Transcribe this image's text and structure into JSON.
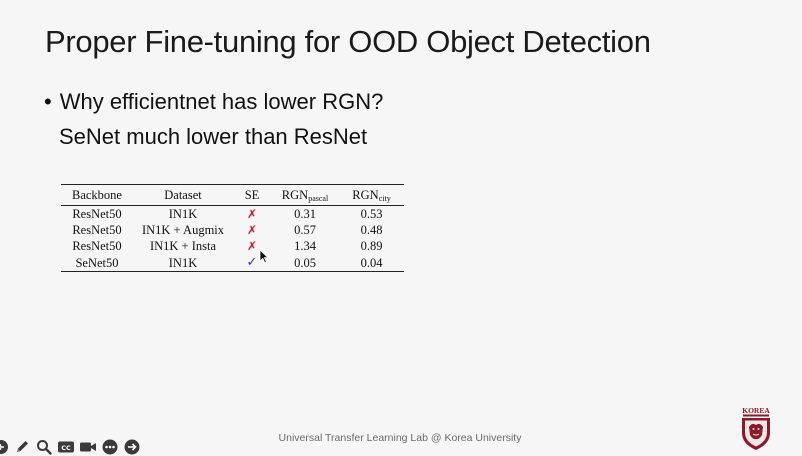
{
  "slide": {
    "title": "Proper Fine-tuning for OOD Object Detection",
    "bullet": "Why efficientnet has lower RGN?",
    "subtext": "SeNet much lower than ResNet"
  },
  "table": {
    "headers": {
      "backbone": "Backbone",
      "dataset": "Dataset",
      "se": "SE",
      "rgn_base_1": "RGN",
      "rgn_sub_1": "pascal",
      "rgn_base_2": "RGN",
      "rgn_sub_2": "city"
    },
    "rows": [
      {
        "backbone": "ResNet50",
        "dataset": "IN1K",
        "se": "✗",
        "rgn_pascal": "0.31",
        "rgn_city": "0.53"
      },
      {
        "backbone": "ResNet50",
        "dataset": "IN1K + Augmix",
        "se": "✗",
        "rgn_pascal": "0.57",
        "rgn_city": "0.48"
      },
      {
        "backbone": "ResNet50",
        "dataset": "IN1K + Insta",
        "se": "✗",
        "rgn_pascal": "1.34",
        "rgn_city": "0.89"
      },
      {
        "backbone": "SeNet50",
        "dataset": "IN1K",
        "se": "✓",
        "rgn_pascal": "0.05",
        "rgn_city": "0.04"
      }
    ]
  },
  "footer": {
    "text": "Universal Transfer Learning Lab @ Korea University"
  },
  "logo": {
    "text": "KOREA"
  },
  "toolbar": {
    "icons": [
      "previous-slide-icon",
      "pen-icon",
      "zoom-icon",
      "captions-icon",
      "camera-icon",
      "more-icon",
      "next-slide-icon"
    ]
  },
  "colors": {
    "background": "#f6f6f6",
    "cross_mark": "#c8102e",
    "check_mark": "#2a2acb",
    "logo_crimson": "#8b1a2b"
  }
}
